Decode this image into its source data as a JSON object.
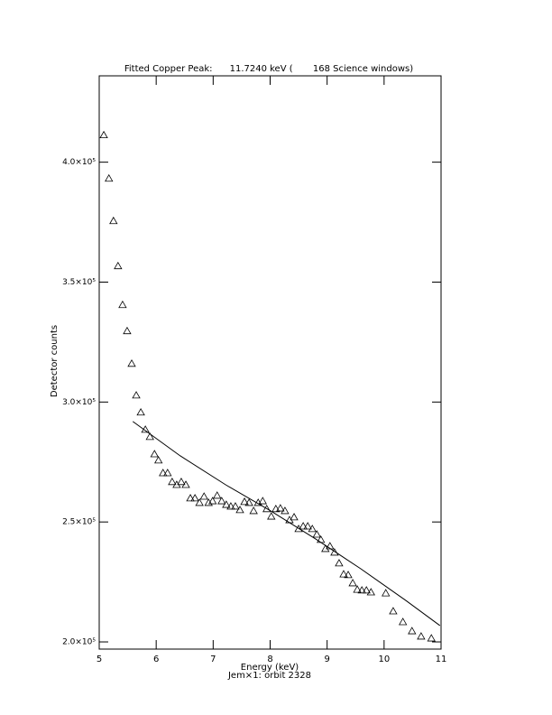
{
  "chart_data": {
    "type": "scatter",
    "title": "Fitted Copper Peak:      11.7240 keV (       168 Science windows)",
    "x_label": "Energy (keV)",
    "subtitle": "Jem×1: orbit 2328",
    "y_label": "Detector counts",
    "xlim": [
      5,
      11
    ],
    "xticks": [
      5,
      6,
      7,
      8,
      9,
      10,
      11
    ],
    "ylim": [
      197000,
      436000
    ],
    "yticks": [
      {
        "value": 200000,
        "label": "2.0×10⁵"
      },
      {
        "value": 250000,
        "label": "2.5×10⁵"
      },
      {
        "value": 300000,
        "label": "3.0×10⁵"
      },
      {
        "value": 350000,
        "label": "3.5×10⁵"
      },
      {
        "value": 400000,
        "label": "4.0×10⁵"
      }
    ],
    "series": [
      {
        "type": "scatter",
        "color": "#000000",
        "x": [
          5.08,
          5.17,
          5.25,
          5.33,
          5.41,
          5.49,
          5.57,
          5.65,
          5.73,
          5.81,
          5.89,
          5.97,
          6.04,
          6.12,
          6.2,
          6.28,
          6.36,
          6.44,
          6.52,
          6.6,
          6.68,
          6.76,
          6.84,
          6.92,
          6.99,
          7.07,
          7.15,
          7.23,
          7.31,
          7.39,
          7.47,
          7.55,
          7.63,
          7.71,
          7.79,
          7.87,
          7.94,
          8.02,
          8.1,
          8.18,
          8.26,
          8.34,
          8.42,
          8.5,
          8.58,
          8.66,
          8.74,
          8.82,
          8.89,
          8.97,
          9.05,
          9.13,
          9.21,
          9.29,
          9.37,
          9.45,
          9.53,
          9.61,
          9.69,
          9.77,
          10.03,
          10.16,
          10.33,
          10.49,
          10.65,
          10.83
        ],
        "values": [
          411300,
          393200,
          375500,
          356700,
          340500,
          329600,
          316000,
          302800,
          295700,
          288500,
          285500,
          278300,
          275700,
          270400,
          270400,
          266700,
          265500,
          266700,
          265500,
          259900,
          259900,
          258000,
          260600,
          258000,
          258700,
          261000,
          258700,
          257200,
          256500,
          256500,
          255000,
          258400,
          258000,
          254600,
          258000,
          258700,
          255400,
          252300,
          255400,
          255700,
          254600,
          250800,
          252000,
          247100,
          248200,
          248200,
          247100,
          244800,
          242600,
          238800,
          239900,
          237300,
          232800,
          228200,
          227900,
          224500,
          221800,
          221500,
          221500,
          220700,
          220300,
          212800,
          208300,
          204500,
          202300,
          201500
        ]
      },
      {
        "type": "line",
        "color": "#000000",
        "x": [
          5.59,
          6.42,
          7.22,
          8.01,
          8.8,
          9.59,
          10.38,
          10.98
        ],
        "values": [
          291900,
          277600,
          265500,
          254600,
          242900,
          230500,
          217300,
          206800
        ]
      }
    ]
  }
}
